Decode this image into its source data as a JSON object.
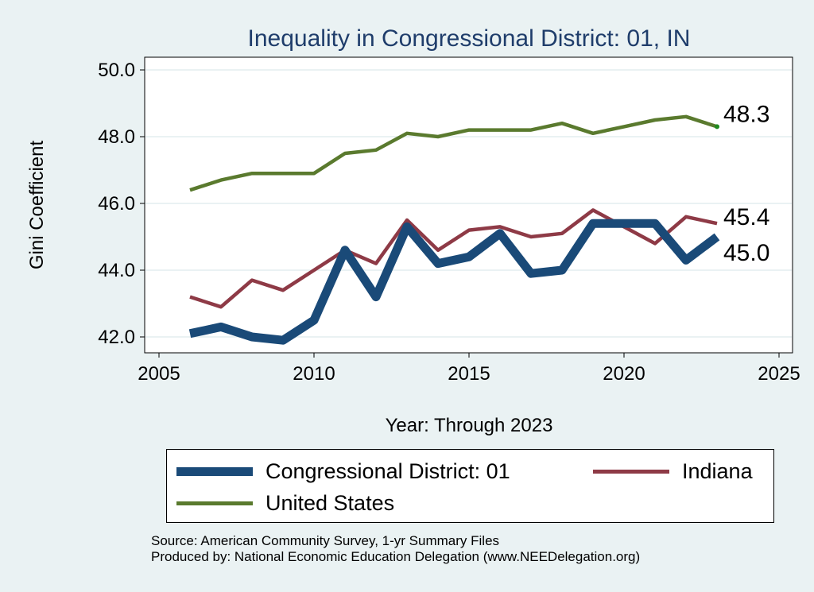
{
  "chart_data": {
    "type": "line",
    "title": "Inequality in Congressional District:  01, IN",
    "xlabel": "Year: Through 2023",
    "ylabel": "Gini Coefficient",
    "xlim": [
      2005,
      2025
    ],
    "ylim": [
      42.0,
      50.0
    ],
    "x_ticks": [
      "2005",
      "2010",
      "2015",
      "2020",
      "2025"
    ],
    "y_ticks": [
      "42.0",
      "44.0",
      "46.0",
      "48.0",
      "50.0"
    ],
    "x": [
      2006,
      2007,
      2008,
      2009,
      2010,
      2011,
      2012,
      2013,
      2014,
      2015,
      2016,
      2017,
      2018,
      2019,
      2020,
      2021,
      2022,
      2023
    ],
    "series": [
      {
        "name": "Congressional District:  01",
        "color": "#1a4a78",
        "values": [
          42.1,
          42.3,
          42.0,
          41.9,
          42.5,
          44.6,
          43.2,
          45.3,
          44.2,
          44.4,
          45.1,
          43.9,
          44.0,
          45.4,
          45.4,
          45.4,
          44.3,
          45.0
        ],
        "end_label": "45.0"
      },
      {
        "name": "Indiana",
        "color": "#8e3a46",
        "values": [
          43.2,
          42.9,
          43.7,
          43.4,
          44.0,
          44.6,
          44.2,
          45.5,
          44.6,
          45.2,
          45.3,
          45.0,
          45.1,
          45.8,
          45.3,
          44.8,
          45.6,
          45.4
        ],
        "end_label": "45.4"
      },
      {
        "name": "United States",
        "color": "#5a7a2e",
        "values": [
          46.4,
          46.7,
          46.9,
          46.9,
          46.9,
          47.5,
          47.6,
          48.1,
          48.0,
          48.2,
          48.2,
          48.2,
          48.4,
          48.1,
          48.3,
          48.5,
          48.6,
          48.3
        ],
        "end_label": "48.3"
      }
    ],
    "legend_position": "bottom",
    "grid": true
  },
  "source": {
    "line1": "Source: American Community Survey, 1-yr Summary Files",
    "line2": "Produced by: National Economic Education Delegation (www.NEEDelegation.org)"
  }
}
